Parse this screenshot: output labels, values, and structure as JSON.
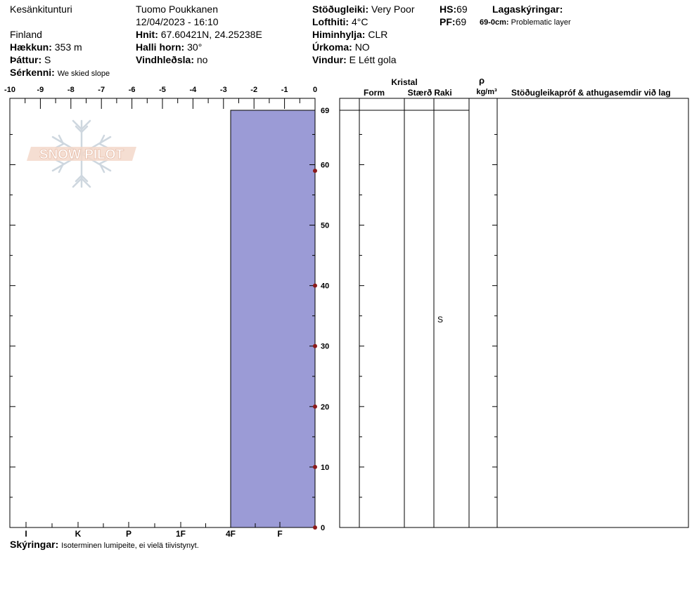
{
  "header": {
    "location": "Kesänkitunturi",
    "observer": "Tuomo Poukkanen",
    "datetime": "12/04/2023 - 16:10",
    "country": "Finland",
    "elevation": {
      "label": "Hækkun:",
      "value": "353 m"
    },
    "aspect": {
      "label": "Þáttur:",
      "value": "S"
    },
    "features": {
      "label": "Sérkenni:",
      "value": "We skied slope"
    },
    "coords": {
      "label": "Hnit:",
      "value": "67.60421N, 24.25238E"
    },
    "slope": {
      "label": "Halli horn:",
      "value": "30°"
    },
    "wind_loading": {
      "label": "Vindhleðsla:",
      "value": "no"
    },
    "stability": {
      "label": "Stöðugleiki:",
      "value": "Very Poor"
    },
    "air_temp": {
      "label": "Lofthiti:",
      "value": "4°C"
    },
    "sky": {
      "label": "Himinhylja:",
      "value": "CLR"
    },
    "precip": {
      "label": "Úrkoma:",
      "value": "NO"
    },
    "wind": {
      "label": "Vindur:",
      "value": "E Létt gola"
    },
    "hs": {
      "label": "HS:",
      "value": "69"
    },
    "pf": {
      "label": "PF:",
      "value": "69"
    },
    "layer_notes_title": "Lagaskýringar:",
    "layer_note": {
      "range": "69-0cm:",
      "text": "Problematic layer"
    }
  },
  "footer": {
    "notes_label": "Skýringar:",
    "notes_text": "Isoterminen lumipeite, ei vielä tiivistynyt."
  },
  "watermark": "SNOW PILOT",
  "table": {
    "kristal": "Kristal",
    "form": "Form",
    "size": "Stærð",
    "moisture": "Raki",
    "rho": "ρ",
    "density_unit": "kg/m³",
    "tests": "Stöðugleikapróf & athugasemdir við lag",
    "layer_moisture": "S"
  },
  "colors": {
    "hardness_fill": "#9b9bd6",
    "temp_point": "#8b1a1a"
  },
  "chart_data": {
    "type": "area",
    "temperature_axis": {
      "ticks": [
        "-10",
        "-9",
        "-8",
        "-7",
        "-6",
        "-5",
        "-4",
        "-3",
        "-2",
        "-1",
        "0"
      ],
      "range": [
        -10,
        0
      ]
    },
    "hardness_axis": {
      "ticks": [
        "I",
        "K",
        "P",
        "1F",
        "4F",
        "F"
      ]
    },
    "depth_axis": {
      "ticks": [
        "0",
        "10",
        "20",
        "30",
        "40",
        "50",
        "60",
        "69"
      ],
      "range": [
        0,
        69
      ]
    },
    "hardness_layers": [
      {
        "top": 69,
        "bottom": 0,
        "hardness": "4F"
      }
    ],
    "temperature_profile": [
      {
        "depth": 0,
        "temp": 0
      },
      {
        "depth": 10,
        "temp": 0
      },
      {
        "depth": 20,
        "temp": 0
      },
      {
        "depth": 30,
        "temp": 0
      },
      {
        "depth": 40,
        "temp": 0
      },
      {
        "depth": 59,
        "temp": 0
      }
    ]
  }
}
